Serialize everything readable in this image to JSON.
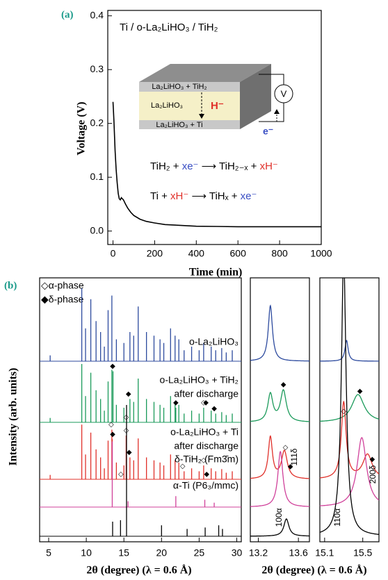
{
  "chart_data": [
    {
      "type": "line",
      "panel_label": "(a)",
      "title": "Ti / o-La₂LiHO₃ / TiH₂",
      "x_label": "Time (min)",
      "y_label": "Voltage (V)",
      "x": [
        0,
        2,
        5,
        10,
        15,
        20,
        25,
        30,
        35,
        40,
        50,
        60,
        70,
        85,
        100,
        130,
        160,
        200,
        250,
        300,
        400,
        500,
        600,
        800,
        1000
      ],
      "series": [
        {
          "color": "#000000",
          "values": [
            0.24,
            0.225,
            0.2,
            0.15,
            0.115,
            0.09,
            0.07,
            0.06,
            0.058,
            0.062,
            0.058,
            0.05,
            0.043,
            0.035,
            0.029,
            0.022,
            0.018,
            0.015,
            0.012,
            0.011,
            0.009,
            0.0085,
            0.008,
            0.008,
            0.008
          ]
        }
      ],
      "xlim": [
        -25,
        1000
      ],
      "ylim": [
        -0.025,
        0.41
      ],
      "xticks": [
        0,
        200,
        400,
        600,
        800,
        1000
      ],
      "yticks": [
        {
          "value": 0,
          "label": "0.0"
        },
        0.1,
        0.2,
        0.3,
        0.4
      ],
      "inset": {
        "layers": [
          "La₂LiHO₃ + TiH₂",
          "La₂LiHO₃",
          "La₂LiHO₃ + Ti"
        ],
        "ion": "H⁻",
        "meter": "V",
        "electron": "e⁻"
      },
      "equations": [
        [
          "TiH₂ + ",
          "xe⁻",
          " ⟶ TiH₂₋ₓ + ",
          "xH⁻"
        ],
        [
          "Ti + ",
          "xH⁻",
          " ⟶ TiHₓ + ",
          "xe⁻"
        ]
      ]
    },
    {
      "type": "stick",
      "panel_label": "(b)",
      "x_label": "2θ (degree) (λ = 0.6 Å)",
      "y_label": "Intensity (arb. units)",
      "legend": [
        "◇α-phase",
        "◆δ-phase"
      ],
      "xlim": [
        3.8,
        30.6
      ],
      "xticks": [
        5,
        10,
        15,
        20,
        25,
        30
      ],
      "series": [
        {
          "name": [
            "o-La₂LiHO₃"
          ],
          "color": "#2c4a9e",
          "x": [
            5.2,
            9.4,
            9.9,
            10.6,
            11.3,
            11.9,
            12.4,
            12.9,
            13.4,
            14.0,
            15.0,
            15.8,
            16.3,
            16.9,
            18.0,
            19.0,
            19.8,
            20.3,
            21.2,
            21.8,
            22.3,
            23.0,
            24.0,
            25.0,
            25.6,
            26.6,
            27.2,
            28.0,
            28.6,
            29.4
          ],
          "values": [
            8,
            100,
            45,
            85,
            55,
            40,
            20,
            70,
            90,
            30,
            25,
            40,
            35,
            75,
            40,
            35,
            30,
            25,
            45,
            35,
            30,
            15,
            20,
            15,
            25,
            20,
            15,
            18,
            12,
            15
          ],
          "alpha_marks": [],
          "delta_marks": []
        },
        {
          "name": [
            "o-La₂LiHO₃ + TiH₂",
            "after discharge"
          ],
          "color": "#1a9a5a",
          "x": [
            5.2,
            9.4,
            9.9,
            10.6,
            11.3,
            11.9,
            12.4,
            12.9,
            13.4,
            14.0,
            15.0,
            15.8,
            16.3,
            16.9,
            18.0,
            19.0,
            19.8,
            20.3,
            21.2,
            21.8,
            22.3,
            23.0,
            24.0,
            25.0,
            25.6,
            26.6,
            27.2,
            28.0,
            28.6,
            29.4,
            13.55,
            21.9
          ],
          "values": [
            6,
            80,
            36,
            68,
            44,
            32,
            16,
            56,
            72,
            24,
            20,
            32,
            28,
            60,
            32,
            28,
            24,
            20,
            36,
            28,
            24,
            12,
            16,
            12,
            20,
            16,
            12,
            14,
            10,
            12,
            70,
            20
          ],
          "alpha_marks": [
            15.3,
            25.6
          ],
          "delta_marks": [
            13.5,
            15.6,
            21.9,
            25.9,
            27.0
          ]
        },
        {
          "name": [
            "o-La₂LiHO₃ + Ti",
            "after discharge"
          ],
          "color": "#e0302a",
          "x": [
            5.2,
            9.4,
            9.9,
            10.6,
            11.3,
            11.9,
            12.4,
            12.9,
            13.4,
            14.0,
            15.0,
            15.8,
            16.3,
            16.9,
            18.0,
            19.0,
            19.8,
            20.3,
            21.2,
            21.8,
            22.3,
            23.0,
            24.0,
            25.0,
            25.6,
            26.6,
            27.2,
            28.0,
            28.6,
            29.4,
            13.45,
            15.3
          ],
          "values": [
            6,
            75,
            34,
            64,
            41,
            30,
            15,
            53,
            68,
            23,
            19,
            30,
            26,
            56,
            30,
            26,
            23,
            19,
            34,
            26,
            23,
            11,
            15,
            11,
            19,
            15,
            11,
            14,
            9,
            11,
            55,
            60
          ],
          "alpha_marks": [
            13.3,
            14.6,
            15.3,
            22.8,
            25.6
          ],
          "delta_marks": [
            13.5,
            15.7,
            26.0
          ]
        },
        {
          "name": [
            "δ-TiH₂ (Fm3̄m)"
          ],
          "color": "#d0409a",
          "x": [
            13.45,
            15.55,
            21.9,
            25.75,
            27.0
          ],
          "values": [
            90,
            8,
            15,
            10,
            6
          ],
          "alpha_marks": [],
          "delta_marks": []
        },
        {
          "name": [
            "α-Ti (P6₃/mmc)"
          ],
          "color": "#000000",
          "x": [
            13.5,
            14.55,
            15.35,
            20.0,
            23.4,
            25.8,
            27.6,
            28.1
          ],
          "values": [
            20,
            22,
            180,
            15,
            10,
            12,
            15,
            10
          ],
          "alpha_marks": [],
          "delta_marks": []
        }
      ]
    },
    {
      "type": "profile",
      "x_label": "2θ (degree) (λ = 0.6 Å)",
      "xlim": [
        13.12,
        13.71
      ],
      "xticks": [
        13.2,
        13.6
      ],
      "peak_labels": [
        "111δ",
        "100α"
      ],
      "series": [
        {
          "color": "#2c4a9e",
          "x": [
            13.32
          ],
          "values": [
            80
          ],
          "widths": [
            0.025
          ],
          "alpha_marks": [],
          "delta_marks": []
        },
        {
          "color": "#1a9a5a",
          "x": [
            13.32,
            13.45
          ],
          "values": [
            40,
            45
          ],
          "widths": [
            0.03,
            0.035
          ],
          "alpha_marks": [],
          "delta_marks": [
            13.45
          ]
        },
        {
          "color": "#e0302a",
          "x": [
            13.32,
            13.46
          ],
          "values": [
            60,
            40
          ],
          "widths": [
            0.025,
            0.035
          ],
          "alpha_marks": [
            13.47
          ],
          "delta_marks": [
            13.52
          ]
        },
        {
          "color": "#d0409a",
          "x": [
            13.42
          ],
          "values": [
            80
          ],
          "widths": [
            0.03
          ],
          "alpha_marks": [],
          "delta_marks": []
        },
        {
          "color": "#000000",
          "x": [
            13.48
          ],
          "values": [
            25
          ],
          "widths": [
            0.03
          ],
          "alpha_marks": [],
          "delta_marks": []
        }
      ]
    },
    {
      "type": "profile",
      "xlim": [
        15.05,
        15.67
      ],
      "xticks": [
        15.1,
        15.5
      ],
      "peak_labels": [
        "110α",
        "200δ"
      ],
      "series": [
        {
          "color": "#2c4a9e",
          "x": [
            15.33
          ],
          "values": [
            30
          ],
          "widths": [
            0.02
          ],
          "alpha_marks": [],
          "delta_marks": []
        },
        {
          "color": "#1a9a5a",
          "x": [
            15.45
          ],
          "values": [
            40
          ],
          "widths": [
            0.08
          ],
          "alpha_marks": [
            15.3
          ],
          "delta_marks": [
            15.47
          ]
        },
        {
          "color": "#e0302a",
          "x": [
            15.3,
            15.55
          ],
          "values": [
            110,
            35
          ],
          "widths": [
            0.03,
            0.06
          ],
          "alpha_marks": [],
          "delta_marks": [
            15.6
          ]
        },
        {
          "color": "#d0409a",
          "x": [
            15.49
          ],
          "values": [
            100
          ],
          "widths": [
            0.06
          ],
          "alpha_marks": [],
          "delta_marks": []
        },
        {
          "color": "#000000",
          "x": [
            15.3
          ],
          "values": [
            400
          ],
          "widths": [
            0.03
          ],
          "alpha_marks": [],
          "delta_marks": []
        }
      ]
    }
  ]
}
